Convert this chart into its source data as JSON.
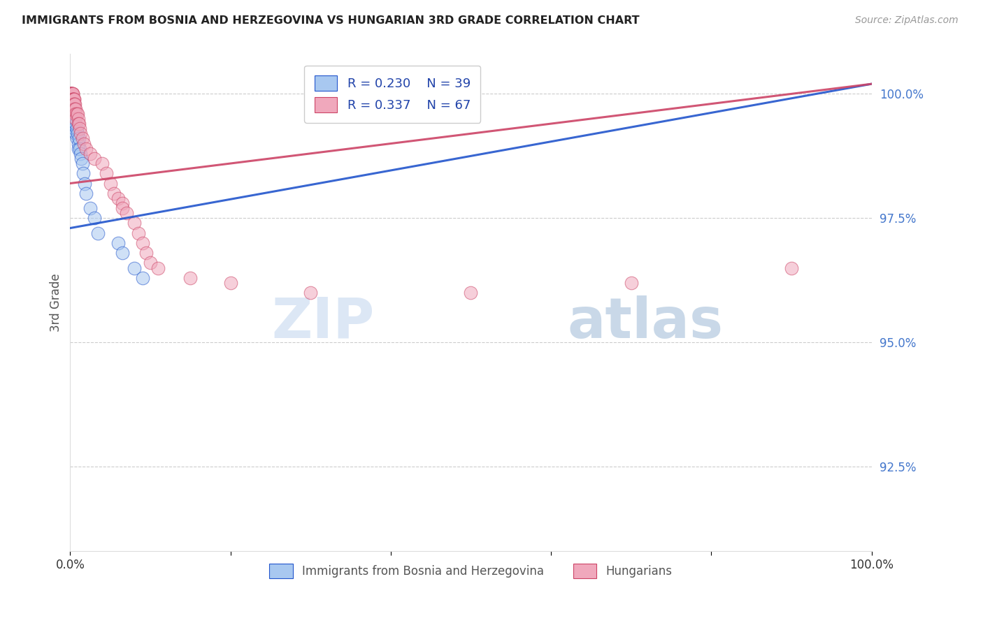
{
  "title": "IMMIGRANTS FROM BOSNIA AND HERZEGOVINA VS HUNGARIAN 3RD GRADE CORRELATION CHART",
  "source": "Source: ZipAtlas.com",
  "ylabel": "3rd Grade",
  "right_yticks": [
    "100.0%",
    "97.5%",
    "95.0%",
    "92.5%"
  ],
  "right_ytick_vals": [
    1.0,
    0.975,
    0.95,
    0.925
  ],
  "xmin": 0.0,
  "xmax": 1.0,
  "ymin": 0.908,
  "ymax": 1.008,
  "legend_blue_R": "R = 0.230",
  "legend_blue_N": "N = 39",
  "legend_pink_R": "R = 0.337",
  "legend_pink_N": "N = 67",
  "legend_label_blue": "Immigrants from Bosnia and Herzegovina",
  "legend_label_pink": "Hungarians",
  "blue_color": "#A8C8F0",
  "pink_color": "#F0A8BC",
  "blue_line_color": "#2255CC",
  "pink_line_color": "#CC4466",
  "watermark_zip": "ZIP",
  "watermark_atlas": "atlas",
  "blue_scatter_x": [
    0.001,
    0.001,
    0.002,
    0.002,
    0.002,
    0.003,
    0.003,
    0.003,
    0.003,
    0.004,
    0.004,
    0.004,
    0.005,
    0.005,
    0.005,
    0.006,
    0.006,
    0.007,
    0.007,
    0.008,
    0.008,
    0.009,
    0.01,
    0.01,
    0.011,
    0.012,
    0.013,
    0.014,
    0.015,
    0.016,
    0.018,
    0.02,
    0.025,
    0.03,
    0.035,
    0.06,
    0.065,
    0.08,
    0.09
  ],
  "blue_scatter_y": [
    1.0,
    0.999,
    0.999,
    0.998,
    0.997,
    0.998,
    0.997,
    0.996,
    0.995,
    0.997,
    0.996,
    0.994,
    0.996,
    0.995,
    0.993,
    0.995,
    0.993,
    0.994,
    0.992,
    0.993,
    0.991,
    0.992,
    0.99,
    0.989,
    0.991,
    0.989,
    0.988,
    0.987,
    0.986,
    0.984,
    0.982,
    0.98,
    0.977,
    0.975,
    0.972,
    0.97,
    0.968,
    0.965,
    0.963
  ],
  "pink_scatter_x": [
    0.001,
    0.001,
    0.001,
    0.001,
    0.001,
    0.001,
    0.001,
    0.002,
    0.002,
    0.002,
    0.002,
    0.002,
    0.002,
    0.003,
    0.003,
    0.003,
    0.003,
    0.003,
    0.004,
    0.004,
    0.004,
    0.004,
    0.004,
    0.005,
    0.005,
    0.005,
    0.005,
    0.005,
    0.005,
    0.006,
    0.006,
    0.006,
    0.007,
    0.007,
    0.007,
    0.008,
    0.009,
    0.01,
    0.01,
    0.011,
    0.012,
    0.013,
    0.015,
    0.017,
    0.02,
    0.025,
    0.03,
    0.04,
    0.045,
    0.05,
    0.055,
    0.06,
    0.065,
    0.065,
    0.07,
    0.08,
    0.085,
    0.09,
    0.095,
    0.1,
    0.11,
    0.15,
    0.2,
    0.3,
    0.5,
    0.7,
    0.9
  ],
  "pink_scatter_y": [
    1.0,
    1.0,
    1.0,
    1.0,
    1.0,
    1.0,
    1.0,
    1.0,
    1.0,
    1.0,
    1.0,
    0.999,
    0.999,
    1.0,
    1.0,
    0.999,
    0.999,
    0.998,
    0.999,
    0.999,
    0.998,
    0.998,
    0.997,
    0.999,
    0.999,
    0.998,
    0.998,
    0.997,
    0.997,
    0.998,
    0.997,
    0.996,
    0.997,
    0.996,
    0.995,
    0.996,
    0.996,
    0.995,
    0.994,
    0.994,
    0.993,
    0.992,
    0.991,
    0.99,
    0.989,
    0.988,
    0.987,
    0.986,
    0.984,
    0.982,
    0.98,
    0.979,
    0.978,
    0.977,
    0.976,
    0.974,
    0.972,
    0.97,
    0.968,
    0.966,
    0.965,
    0.963,
    0.962,
    0.96,
    0.96,
    0.962,
    0.965
  ],
  "blue_line_x0": 0.0,
  "blue_line_x1": 1.0,
  "blue_line_y0": 0.973,
  "blue_line_y1": 1.002,
  "pink_line_x0": 0.0,
  "pink_line_x1": 1.0,
  "pink_line_y0": 0.982,
  "pink_line_y1": 1.002
}
